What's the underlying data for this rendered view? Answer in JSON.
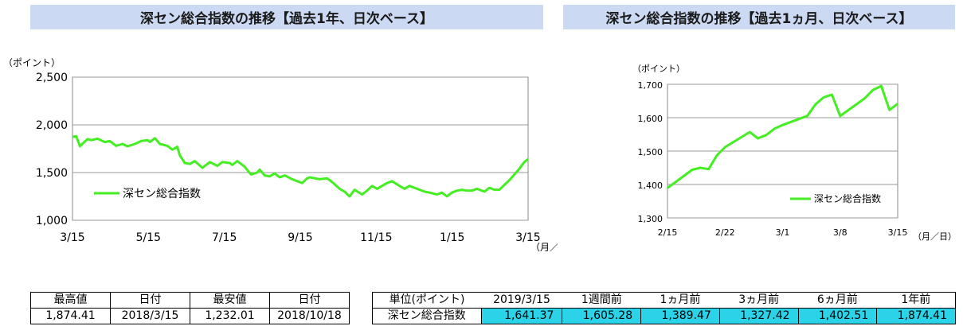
{
  "chart_data": [
    {
      "type": "line",
      "title": "深セン総合指数の推移【過去1年、日次ベース】",
      "ylabel": "（ポイント）",
      "xlabel": "（月／日）",
      "ylim": [
        1000,
        2500
      ],
      "yticks": [
        "1,000",
        "1,500",
        "2,000",
        "2,500"
      ],
      "ytick_values": [
        1000,
        1500,
        2000,
        2500
      ],
      "xticks": [
        "3/15",
        "5/15",
        "7/15",
        "9/15",
        "11/15",
        "1/15",
        "3/15"
      ],
      "grid": "horizontal",
      "legend_position": "center-left",
      "series": [
        {
          "name": "深セン総合指数",
          "color": "#44ee22",
          "x": [
            0,
            3,
            6,
            9,
            12,
            15,
            20,
            26,
            30,
            35,
            40,
            44,
            50,
            55,
            60,
            62,
            66,
            70,
            76,
            80,
            84,
            86,
            90,
            94,
            98,
            104,
            110,
            116,
            120,
            126,
            128,
            132,
            138,
            143,
            148,
            150,
            154,
            158,
            162,
            166,
            170,
            176,
            180,
            184,
            188,
            190,
            194,
            198,
            204,
            208,
            214,
            218,
            222,
            226,
            232,
            236,
            240,
            244,
            248,
            252,
            256,
            262,
            266,
            270,
            274,
            278,
            282,
            286,
            292,
            296,
            300,
            304,
            308,
            312,
            316,
            320,
            324,
            330,
            334,
            338,
            342,
            346,
            350,
            354,
            358,
            362,
            365
          ],
          "values": [
            1874,
            1880,
            1775,
            1815,
            1850,
            1840,
            1855,
            1820,
            1830,
            1780,
            1800,
            1775,
            1800,
            1830,
            1840,
            1820,
            1860,
            1800,
            1780,
            1740,
            1770,
            1680,
            1600,
            1590,
            1620,
            1550,
            1610,
            1570,
            1610,
            1600,
            1580,
            1620,
            1560,
            1480,
            1500,
            1530,
            1470,
            1460,
            1490,
            1450,
            1470,
            1430,
            1410,
            1390,
            1440,
            1450,
            1440,
            1430,
            1440,
            1400,
            1330,
            1300,
            1250,
            1320,
            1270,
            1310,
            1360,
            1330,
            1360,
            1390,
            1410,
            1360,
            1330,
            1360,
            1340,
            1320,
            1300,
            1290,
            1270,
            1290,
            1250,
            1290,
            1310,
            1320,
            1310,
            1310,
            1330,
            1300,
            1340,
            1320,
            1320,
            1370,
            1420,
            1480,
            1540,
            1610,
            1641
          ]
        }
      ]
    },
    {
      "type": "line",
      "title": "深セン総合指数の推移【過去1ヵ月、日次ベース】",
      "ylabel": "（ポイント）",
      "xlabel": "（月／日）",
      "ylim": [
        1300,
        1700
      ],
      "yticks": [
        "1,300",
        "1,400",
        "1,500",
        "1,600",
        "1,700"
      ],
      "ytick_values": [
        1300,
        1400,
        1500,
        1600,
        1700
      ],
      "xticks": [
        "2/15",
        "2/22",
        "3/1",
        "3/8",
        "3/15"
      ],
      "grid": "horizontal",
      "legend_position": "bottom-right",
      "series": [
        {
          "name": "深セン総合指数",
          "color": "#44ee22",
          "x": [
            0,
            3,
            4,
            5,
            6,
            7,
            10,
            11,
            12,
            13,
            14,
            17,
            18,
            19,
            20,
            21,
            24,
            25,
            26,
            27,
            28
          ],
          "values": [
            1389.47,
            1444,
            1450,
            1446,
            1487,
            1512,
            1557,
            1538,
            1548,
            1567,
            1578,
            1605.28,
            1640,
            1661,
            1669,
            1605,
            1658,
            1683,
            1695,
            1623,
            1641.37
          ]
        }
      ]
    }
  ],
  "stats_table": {
    "headers": [
      "最高値",
      "日付",
      "最安値",
      "日付"
    ],
    "values": [
      "1,874.41",
      "2018/3/15",
      "1,232.01",
      "2018/10/18"
    ]
  },
  "performance_table": {
    "unit_label": "単位(ポイント)",
    "headers": [
      "2019/3/15",
      "1週間前",
      "1ヵ月前",
      "3ヵ月前",
      "6ヵ月前",
      "1年前"
    ],
    "row_label": "深セン総合指数",
    "values": [
      "1,641.37",
      "1,605.28",
      "1,389.47",
      "1,327.42",
      "1,402.51",
      "1,874.41"
    ],
    "highlight_color": "#2bd3e8"
  }
}
